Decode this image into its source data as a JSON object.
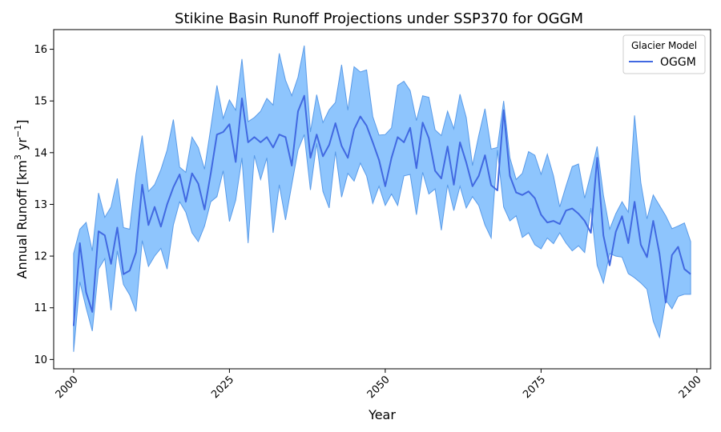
{
  "chart_data": {
    "type": "line",
    "title": "Stikine Basin Runoff Projections under SSP370 for OGGM",
    "xlabel": "Year",
    "ylabel_main": "Annual Runoff [km",
    "ylabel_sup1": "3",
    "ylabel_mid": " yr",
    "ylabel_sup2": "−1",
    "ylabel_end": "]",
    "xlim": [
      1996.8,
      2102.2
    ],
    "ylim": [
      9.82,
      16.38
    ],
    "xticks": [
      2000,
      2025,
      2050,
      2075,
      2100
    ],
    "yticks": [
      10,
      11,
      12,
      13,
      14,
      15,
      16
    ],
    "grid": false,
    "legend": {
      "title": "Glacier Model",
      "position": "top-right"
    },
    "series": [
      {
        "name": "OGGM",
        "color": "#4169e1",
        "band_color": "#8ec5fd",
        "band_edge_color": "#5a9be8",
        "x": [
          2000,
          2001,
          2002,
          2003,
          2004,
          2005,
          2006,
          2007,
          2008,
          2009,
          2010,
          2011,
          2012,
          2013,
          2014,
          2015,
          2016,
          2017,
          2018,
          2019,
          2020,
          2021,
          2022,
          2023,
          2024,
          2025,
          2026,
          2027,
          2028,
          2029,
          2030,
          2031,
          2032,
          2033,
          2034,
          2035,
          2036,
          2037,
          2038,
          2039,
          2040,
          2041,
          2042,
          2043,
          2044,
          2045,
          2046,
          2047,
          2048,
          2049,
          2050,
          2051,
          2052,
          2053,
          2054,
          2055,
          2056,
          2057,
          2058,
          2059,
          2060,
          2061,
          2062,
          2063,
          2064,
          2065,
          2066,
          2067,
          2068,
          2069,
          2070,
          2071,
          2072,
          2073,
          2074,
          2075,
          2076,
          2077,
          2078,
          2079,
          2080,
          2081,
          2082,
          2083,
          2084,
          2085,
          2086,
          2087,
          2088,
          2089,
          2090,
          2091,
          2092,
          2093,
          2094,
          2095,
          2096,
          2097,
          2098,
          2099
        ],
        "mean": [
          10.65,
          12.25,
          11.3,
          10.92,
          12.48,
          12.4,
          11.85,
          12.55,
          11.65,
          11.72,
          12.07,
          13.38,
          12.6,
          12.95,
          12.57,
          13.0,
          13.33,
          13.58,
          13.05,
          13.6,
          13.4,
          12.9,
          13.6,
          14.35,
          14.4,
          14.55,
          13.82,
          15.05,
          14.2,
          14.3,
          14.2,
          14.3,
          14.1,
          14.35,
          14.3,
          13.75,
          14.8,
          15.1,
          13.9,
          14.35,
          13.93,
          14.15,
          14.57,
          14.13,
          13.9,
          14.45,
          14.7,
          14.52,
          14.2,
          13.86,
          13.35,
          13.9,
          14.3,
          14.2,
          14.48,
          13.7,
          14.58,
          14.28,
          13.65,
          13.5,
          14.12,
          13.38,
          14.2,
          13.81,
          13.35,
          13.55,
          13.95,
          13.37,
          13.27,
          14.82,
          13.55,
          13.23,
          13.18,
          13.25,
          13.12,
          12.8,
          12.65,
          12.68,
          12.62,
          12.88,
          12.92,
          12.82,
          12.68,
          12.45,
          13.9,
          12.4,
          11.82,
          12.47,
          12.77,
          12.25,
          13.05,
          12.22,
          11.98,
          12.68,
          12.05,
          11.1,
          12.02,
          12.18,
          11.75,
          11.65
        ],
        "lower": [
          10.15,
          11.5,
          11.0,
          10.55,
          11.75,
          11.95,
          10.95,
          12.1,
          11.45,
          11.25,
          10.93,
          12.3,
          11.8,
          12.0,
          12.15,
          11.75,
          12.6,
          13.05,
          12.85,
          12.45,
          12.28,
          12.58,
          13.05,
          13.15,
          13.65,
          12.67,
          13.08,
          13.9,
          12.25,
          13.95,
          13.48,
          13.9,
          12.45,
          13.38,
          12.7,
          13.38,
          14.05,
          14.35,
          13.28,
          14.18,
          13.25,
          12.93,
          14.02,
          13.14,
          13.6,
          13.45,
          13.8,
          13.55,
          13.02,
          13.35,
          12.98,
          13.2,
          12.98,
          13.55,
          13.58,
          12.8,
          13.62,
          13.2,
          13.3,
          12.5,
          13.38,
          12.88,
          13.35,
          12.93,
          13.15,
          12.98,
          12.6,
          12.35,
          14.05,
          12.95,
          12.68,
          12.78,
          12.36,
          12.45,
          12.22,
          12.14,
          12.35,
          12.24,
          12.45,
          12.25,
          12.1,
          12.2,
          12.07,
          12.93,
          11.82,
          11.48,
          12.05,
          12.0,
          11.98,
          11.66,
          11.58,
          11.48,
          11.36,
          10.74,
          10.43,
          11.15,
          10.98,
          11.22,
          11.26,
          11.26
        ],
        "upper": [
          12.05,
          12.52,
          12.65,
          12.1,
          13.22,
          12.75,
          12.95,
          13.5,
          12.55,
          12.52,
          13.58,
          14.33,
          13.25,
          13.38,
          13.67,
          14.05,
          14.64,
          13.72,
          13.62,
          14.3,
          14.1,
          13.68,
          14.48,
          15.3,
          14.66,
          15.02,
          14.82,
          15.81,
          14.6,
          14.68,
          14.8,
          15.05,
          14.92,
          15.92,
          15.4,
          15.1,
          15.46,
          16.07,
          14.4,
          15.12,
          14.58,
          14.83,
          14.97,
          15.7,
          14.82,
          15.66,
          15.56,
          15.6,
          14.7,
          14.34,
          14.35,
          14.48,
          15.3,
          15.38,
          15.2,
          14.62,
          15.1,
          15.07,
          14.44,
          14.33,
          14.8,
          14.46,
          15.13,
          14.68,
          13.75,
          14.33,
          14.85,
          14.07,
          14.1,
          15.0,
          13.9,
          13.48,
          13.6,
          14.02,
          13.95,
          13.58,
          13.97,
          13.55,
          12.95,
          13.35,
          13.73,
          13.78,
          13.12,
          13.6,
          14.12,
          13.18,
          12.52,
          12.82,
          13.05,
          12.85,
          14.72,
          13.42,
          12.72,
          13.18,
          12.98,
          12.78,
          12.53,
          12.58,
          12.64,
          12.28
        ]
      }
    ]
  }
}
